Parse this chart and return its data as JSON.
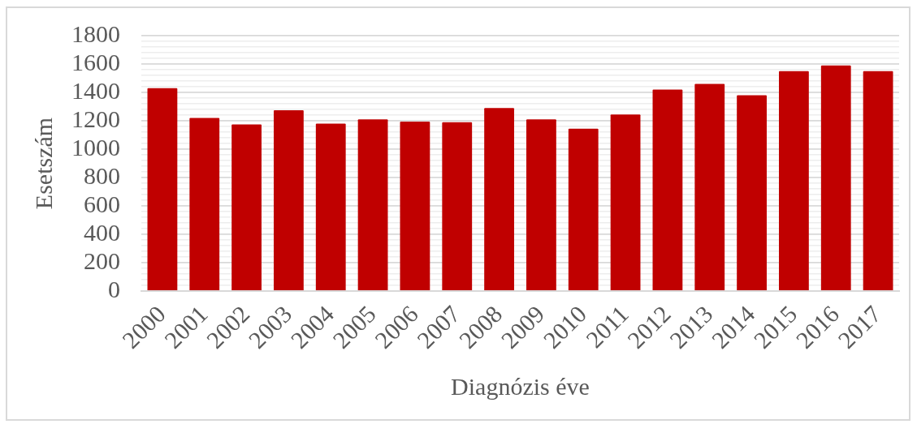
{
  "chart_data": {
    "type": "bar",
    "xlabel": "Diagnózis éve",
    "ylabel": "Esetszám",
    "categories": [
      "2000",
      "2001",
      "2002",
      "2003",
      "2004",
      "2005",
      "2006",
      "2007",
      "2008",
      "2009",
      "2010",
      "2011",
      "2012",
      "2013",
      "2014",
      "2015",
      "2016",
      "2017"
    ],
    "values": [
      1430,
      1220,
      1175,
      1275,
      1180,
      1210,
      1195,
      1190,
      1290,
      1210,
      1145,
      1245,
      1420,
      1460,
      1380,
      1550,
      1590,
      1550
    ],
    "color": "#c00000",
    "ylim": [
      0,
      1800
    ],
    "yticks": [
      0,
      {
        "value": 40,
        "label": null
      },
      {
        "value": 80,
        "label": null
      },
      {
        "value": 120,
        "label": null
      },
      {
        "value": 160,
        "label": null
      },
      200,
      {
        "value": 240,
        "label": null
      },
      {
        "value": 280,
        "label": null
      },
      {
        "value": 320,
        "label": null
      },
      {
        "value": 360,
        "label": null
      },
      400,
      {
        "value": 440,
        "label": null
      },
      {
        "value": 480,
        "label": null
      },
      {
        "value": 520,
        "label": null
      },
      {
        "value": 560,
        "label": null
      },
      600,
      {
        "value": 640,
        "label": null
      },
      {
        "value": 680,
        "label": null
      },
      {
        "value": 720,
        "label": null
      },
      {
        "value": 760,
        "label": null
      },
      800,
      {
        "value": 840,
        "label": null
      },
      {
        "value": 880,
        "label": null
      },
      {
        "value": 920,
        "label": null
      },
      {
        "value": 960,
        "label": null
      },
      1000,
      {
        "value": 1040,
        "label": null
      },
      {
        "value": 1080,
        "label": null
      },
      {
        "value": 1120,
        "label": null
      },
      {
        "value": 1160,
        "label": null
      },
      1200,
      {
        "value": 1240,
        "label": null
      },
      {
        "value": 1280,
        "label": null
      },
      {
        "value": 1320,
        "label": null
      },
      {
        "value": 1360,
        "label": null
      },
      1400,
      {
        "value": 1440,
        "label": null
      },
      {
        "value": 1480,
        "label": null
      },
      {
        "value": 1520,
        "label": null
      },
      {
        "value": 1560,
        "label": null
      },
      1600,
      {
        "value": 1640,
        "label": null
      },
      {
        "value": 1680,
        "label": null
      },
      {
        "value": 1720,
        "label": null
      },
      {
        "value": 1760,
        "label": null
      },
      1800
    ],
    "grid": "y",
    "legend": false
  }
}
